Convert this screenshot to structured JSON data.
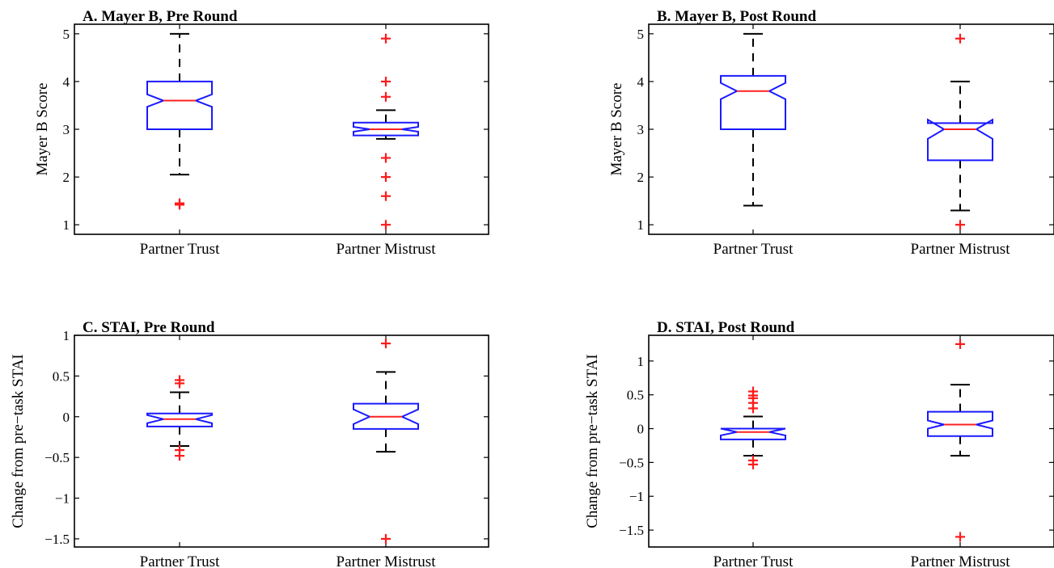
{
  "chart_data": [
    {
      "type": "boxplot",
      "title": "A. Mayer B, Pre Round",
      "ylabel": "Mayer B Score",
      "ylim": [
        0.8,
        5.2
      ],
      "yticks": [
        1,
        2,
        3,
        4,
        5
      ],
      "ytick_labels": [
        "1",
        "2",
        "3",
        "4",
        "5"
      ],
      "categories": [
        "Partner Trust",
        "Partner Mistrust"
      ],
      "boxes": [
        {
          "whisker_low": 2.05,
          "q1": 3.0,
          "notch_low": 3.47,
          "median": 3.6,
          "notch_high": 3.73,
          "q3": 4.0,
          "whisker_high": 5.0,
          "outliers": [
            1.42,
            1.45
          ]
        },
        {
          "whisker_low": 2.8,
          "q1": 2.87,
          "notch_low": 2.95,
          "median": 3.0,
          "notch_high": 3.05,
          "q3": 3.14,
          "whisker_high": 3.4,
          "outliers": [
            4.9,
            4.0,
            3.68,
            2.4,
            2.0,
            1.6,
            1.0
          ]
        }
      ]
    },
    {
      "type": "boxplot",
      "title": "B. Mayer B, Post Round",
      "ylabel": "Mayer B Score",
      "ylim": [
        0.8,
        5.2
      ],
      "yticks": [
        1,
        2,
        3,
        4,
        5
      ],
      "ytick_labels": [
        "1",
        "2",
        "3",
        "4",
        "5"
      ],
      "categories": [
        "Partner Trust",
        "Partner Mistrust"
      ],
      "boxes": [
        {
          "whisker_low": 1.4,
          "q1": 3.0,
          "notch_low": 3.63,
          "median": 3.8,
          "notch_high": 3.97,
          "q3": 4.12,
          "whisker_high": 5.0,
          "outliers": []
        },
        {
          "whisker_low": 1.3,
          "q1": 2.35,
          "notch_low": 2.8,
          "median": 3.0,
          "notch_high": 3.2,
          "q3": 3.13,
          "whisker_high": 4.0,
          "outliers": [
            4.9,
            1.0
          ]
        }
      ]
    },
    {
      "type": "boxplot",
      "title": "C. STAI, Pre Round",
      "ylabel": "Change from pre−task STAI",
      "ylim": [
        -1.6,
        1.0
      ],
      "yticks": [
        -1.5,
        -1,
        -0.5,
        0,
        0.5,
        1
      ],
      "ytick_labels": [
        "−1.5",
        "−1",
        "−0.5",
        "0",
        "0.5",
        "1"
      ],
      "categories": [
        "Partner Trust",
        "Partner Mistrust"
      ],
      "boxes": [
        {
          "whisker_low": -0.36,
          "q1": -0.12,
          "notch_low": -0.08,
          "median": -0.03,
          "notch_high": 0.02,
          "q3": 0.04,
          "whisker_high": 0.3,
          "outliers": [
            0.45,
            0.41,
            -0.41,
            -0.48
          ]
        },
        {
          "whisker_low": -0.43,
          "q1": -0.15,
          "notch_low": -0.09,
          "median": 0.0,
          "notch_high": 0.09,
          "q3": 0.16,
          "whisker_high": 0.55,
          "outliers": [
            0.9,
            -1.5
          ]
        }
      ]
    },
    {
      "type": "boxplot",
      "title": "D. STAI, Post Round",
      "ylabel": "Change from pre−task STAI",
      "ylim": [
        -1.75,
        1.38
      ],
      "yticks": [
        -1.5,
        -1,
        -0.5,
        0,
        0.5,
        1
      ],
      "ytick_labels": [
        "−1.5",
        "−1",
        "−0.5",
        "0",
        "0.5",
        "1"
      ],
      "categories": [
        "Partner Trust",
        "Partner Mistrust"
      ],
      "boxes": [
        {
          "whisker_low": -0.4,
          "q1": -0.16,
          "notch_low": -0.1,
          "median": -0.05,
          "notch_high": 0.0,
          "q3": 0.0,
          "whisker_high": 0.18,
          "outliers": [
            0.55,
            0.49,
            0.45,
            0.38,
            0.3,
            -0.47,
            -0.53
          ]
        },
        {
          "whisker_low": -0.4,
          "q1": -0.11,
          "notch_low": 0.0,
          "median": 0.06,
          "notch_high": 0.12,
          "q3": 0.25,
          "whisker_high": 0.65,
          "outliers": [
            1.25,
            -1.6
          ]
        }
      ]
    }
  ]
}
